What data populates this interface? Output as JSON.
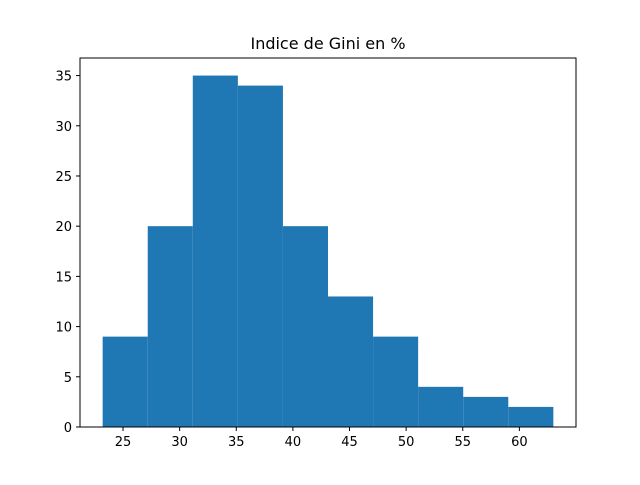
{
  "chart_data": {
    "type": "bar",
    "title": "Indice de Gini en %",
    "xlabel": "",
    "ylabel": "",
    "bin_edges": [
      23.2,
      27.18,
      31.16,
      35.14,
      39.12,
      43.1,
      47.08,
      51.06,
      55.04,
      59.02,
      63.0
    ],
    "values": [
      9,
      20,
      35,
      34,
      20,
      13,
      9,
      4,
      3,
      2
    ],
    "xlim": [
      21.2,
      65.0
    ],
    "ylim": [
      0,
      36.75
    ],
    "xticks": [
      25,
      30,
      35,
      40,
      45,
      50,
      55,
      60
    ],
    "yticks": [
      0,
      5,
      10,
      15,
      20,
      25,
      30,
      35
    ],
    "bar_color": "#1f77b4",
    "grid": false
  }
}
